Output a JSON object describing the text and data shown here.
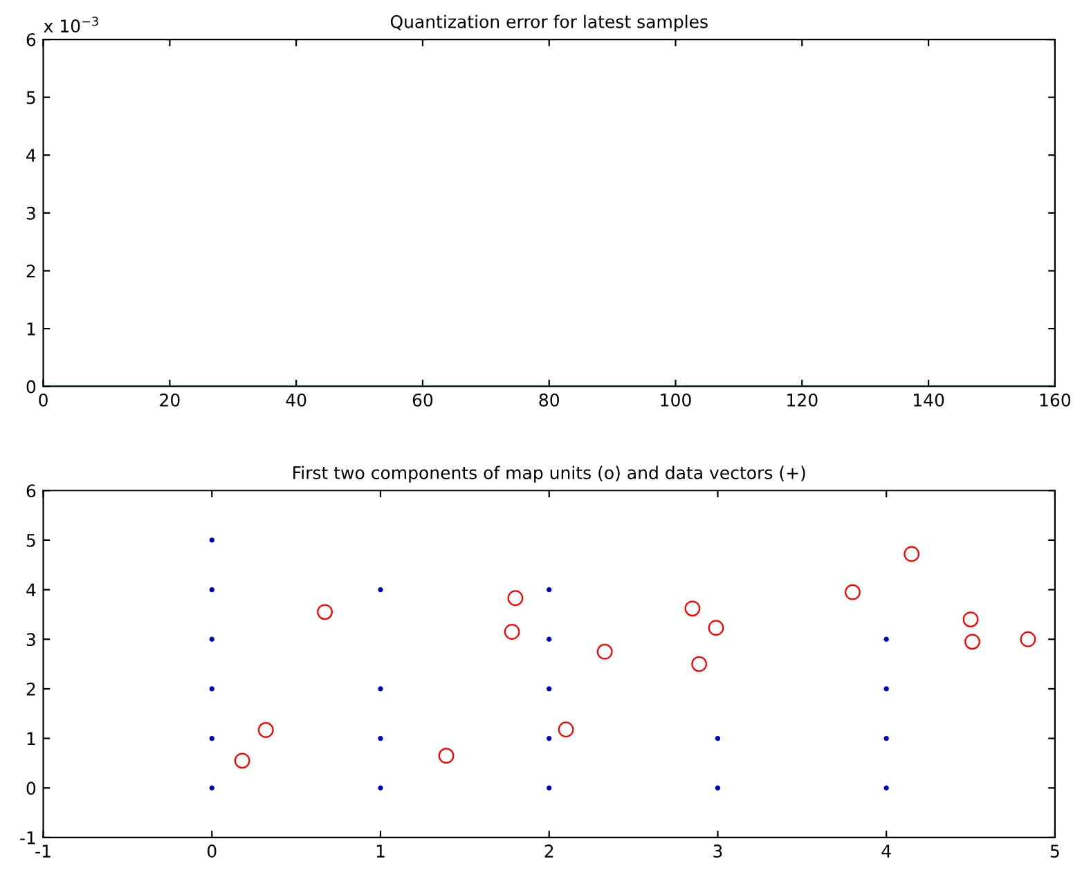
{
  "chart_data": [
    {
      "type": "line",
      "title": "Quantization error for latest samples",
      "x": [
        0,
        160
      ],
      "series": [
        {
          "color": "#008000",
          "values": [
            0,
            0
          ]
        }
      ],
      "xlim": [
        0,
        160
      ],
      "xticks": [
        0,
        20,
        40,
        60,
        80,
        100,
        120,
        140,
        160
      ],
      "ylim": [
        0,
        6
      ],
      "yticks": [
        0,
        1,
        2,
        3,
        4,
        5,
        6
      ],
      "annotations": [
        "x 10$^{−3}$"
      ],
      "grid": false,
      "legend": false
    },
    {
      "type": "scatter",
      "title": "First two components of map units (o) and data vectors (+)",
      "series": [
        {
          "color": "#0000c0",
          "x": [
            0,
            0,
            0,
            0,
            0,
            0,
            1,
            1,
            1,
            1,
            2,
            2,
            2,
            2,
            2,
            3,
            3,
            4,
            4,
            4,
            4
          ],
          "values": [
            0,
            1,
            2,
            3,
            4,
            5,
            0,
            1,
            2,
            4,
            0,
            1,
            2,
            3,
            4,
            0,
            1,
            0,
            1,
            2,
            3
          ]
        },
        {
          "color": "#ff0000",
          "x": [
            0.18,
            0.32,
            0.67,
            1.39,
            1.78,
            1.8,
            2.1,
            2.33,
            2.85,
            2.89,
            2.99,
            3.8,
            4.15,
            4.5,
            4.51,
            4.84
          ],
          "values": [
            0.55,
            1.17,
            3.55,
            0.65,
            3.15,
            3.83,
            1.18,
            2.75,
            3.62,
            2.5,
            3.23,
            3.95,
            4.72,
            3.4,
            2.95,
            3.0
          ]
        }
      ],
      "xlim": [
        -1,
        5
      ],
      "xticks": [
        -1,
        0,
        1,
        2,
        3,
        4,
        5
      ],
      "ylim": [
        -1,
        6
      ],
      "yticks": [
        -1,
        0,
        1,
        2,
        3,
        4,
        5,
        6
      ],
      "marker": "circle",
      "grid": false,
      "legend": false
    }
  ]
}
